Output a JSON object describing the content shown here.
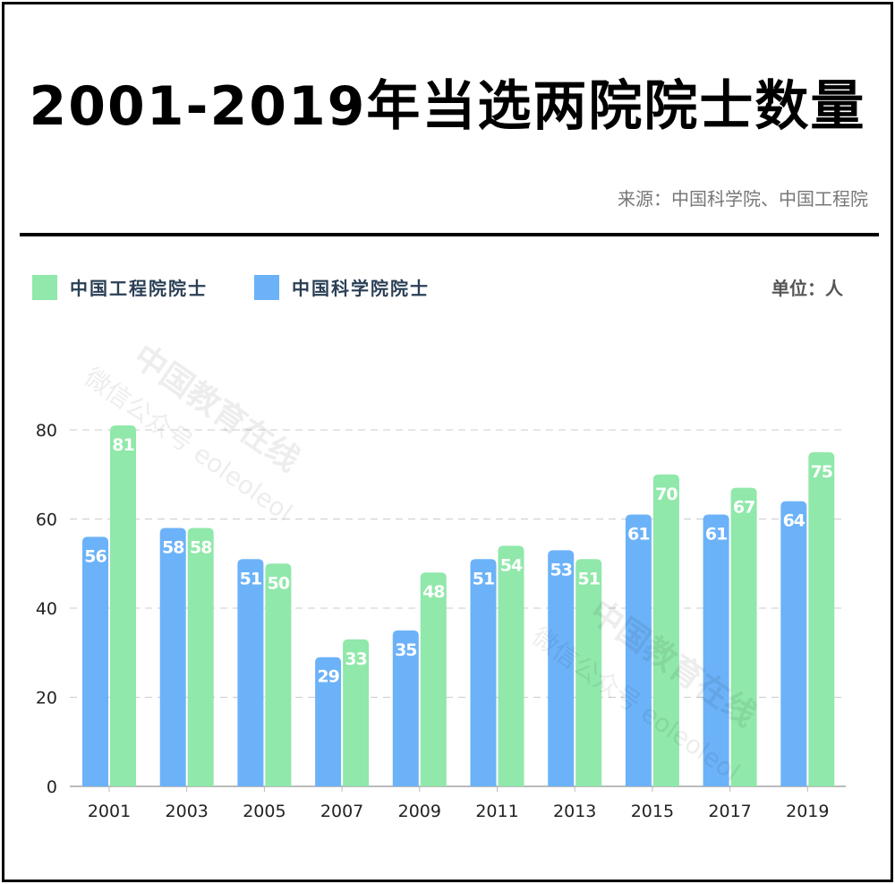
{
  "title": "2001-2019年当选两院院士数量",
  "source": "来源：中国科学院、中国工程院",
  "unit": "单位：人",
  "legend": [
    {
      "label": "中国工程院院士",
      "color": "#90e8aa"
    },
    {
      "label": "中国科学院院士",
      "color": "#6cb2f8"
    }
  ],
  "watermark": {
    "main": "中国教育在线",
    "sub": "微信公众号 eoleoleol"
  },
  "chart_data": {
    "type": "bar",
    "title": "2001-2019年当选两院院士数量",
    "xlabel": "",
    "ylabel": "单位：人",
    "ylim": [
      0,
      80
    ],
    "yticks": [
      0,
      20,
      40,
      60,
      80
    ],
    "grid": true,
    "legend_position": "top-left",
    "categories": [
      "2001",
      "2003",
      "2005",
      "2007",
      "2009",
      "2011",
      "2013",
      "2015",
      "2017",
      "2019"
    ],
    "series": [
      {
        "name": "中国科学院院士",
        "color": "#6cb2f8",
        "values": [
          56,
          58,
          51,
          29,
          35,
          51,
          53,
          61,
          61,
          64
        ]
      },
      {
        "name": "中国工程院院士",
        "color": "#90e8aa",
        "values": [
          81,
          58,
          50,
          33,
          48,
          54,
          51,
          70,
          67,
          75
        ]
      }
    ]
  }
}
